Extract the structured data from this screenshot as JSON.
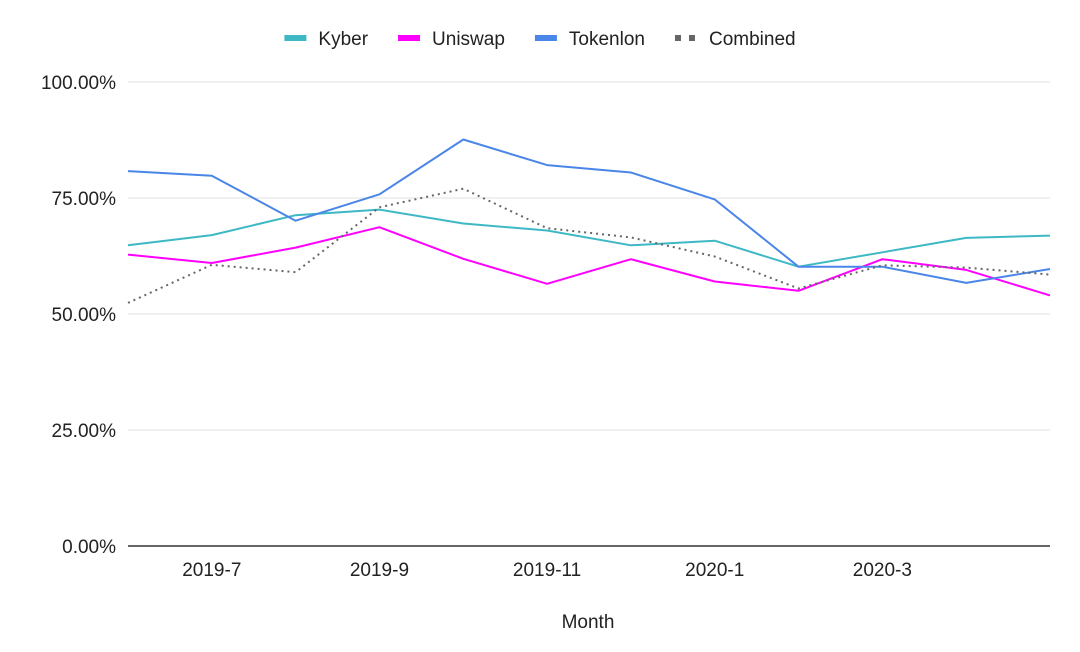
{
  "chart_data": {
    "type": "line",
    "title": "",
    "xlabel": "Month",
    "ylabel": "",
    "ylim": [
      0,
      100
    ],
    "y_ticks": [
      "0.00%",
      "25.00%",
      "50.00%",
      "75.00%",
      "100.00%"
    ],
    "y_tick_values": [
      0,
      25,
      50,
      75,
      100
    ],
    "categories": [
      "2019-6",
      "2019-7",
      "2019-8",
      "2019-9",
      "2019-10",
      "2019-11",
      "2019-12",
      "2020-1",
      "2020-2",
      "2020-3",
      "2020-4",
      "2020-5"
    ],
    "x_tick_labels": [
      "2019-7",
      "2019-9",
      "2019-11",
      "2020-1",
      "2020-3"
    ],
    "grid": true,
    "legend_position": "top-center",
    "series": [
      {
        "name": "Kyber",
        "color": "#3db8c4",
        "style": "solid",
        "values": [
          64.8,
          67.0,
          71.3,
          72.5,
          69.5,
          68.0,
          64.8,
          65.8,
          60.2,
          63.3,
          66.4,
          66.9
        ]
      },
      {
        "name": "Uniswap",
        "color": "#ff00ff",
        "style": "solid",
        "values": [
          62.8,
          61.0,
          64.3,
          68.7,
          61.9,
          56.5,
          61.8,
          57.0,
          55.0,
          61.8,
          59.5,
          54.0
        ]
      },
      {
        "name": "Tokenlon",
        "color": "#4a86e8",
        "style": "solid",
        "values": [
          80.8,
          79.8,
          70.1,
          75.8,
          87.6,
          82.1,
          80.5,
          74.7,
          60.2,
          60.2,
          56.7,
          59.7
        ]
      },
      {
        "name": "Combined",
        "color": "#666666",
        "style": "dotted",
        "values": [
          52.4,
          60.6,
          59.0,
          73.0,
          77.0,
          68.5,
          66.5,
          62.4,
          55.5,
          60.5,
          60.0,
          58.5
        ]
      }
    ]
  }
}
